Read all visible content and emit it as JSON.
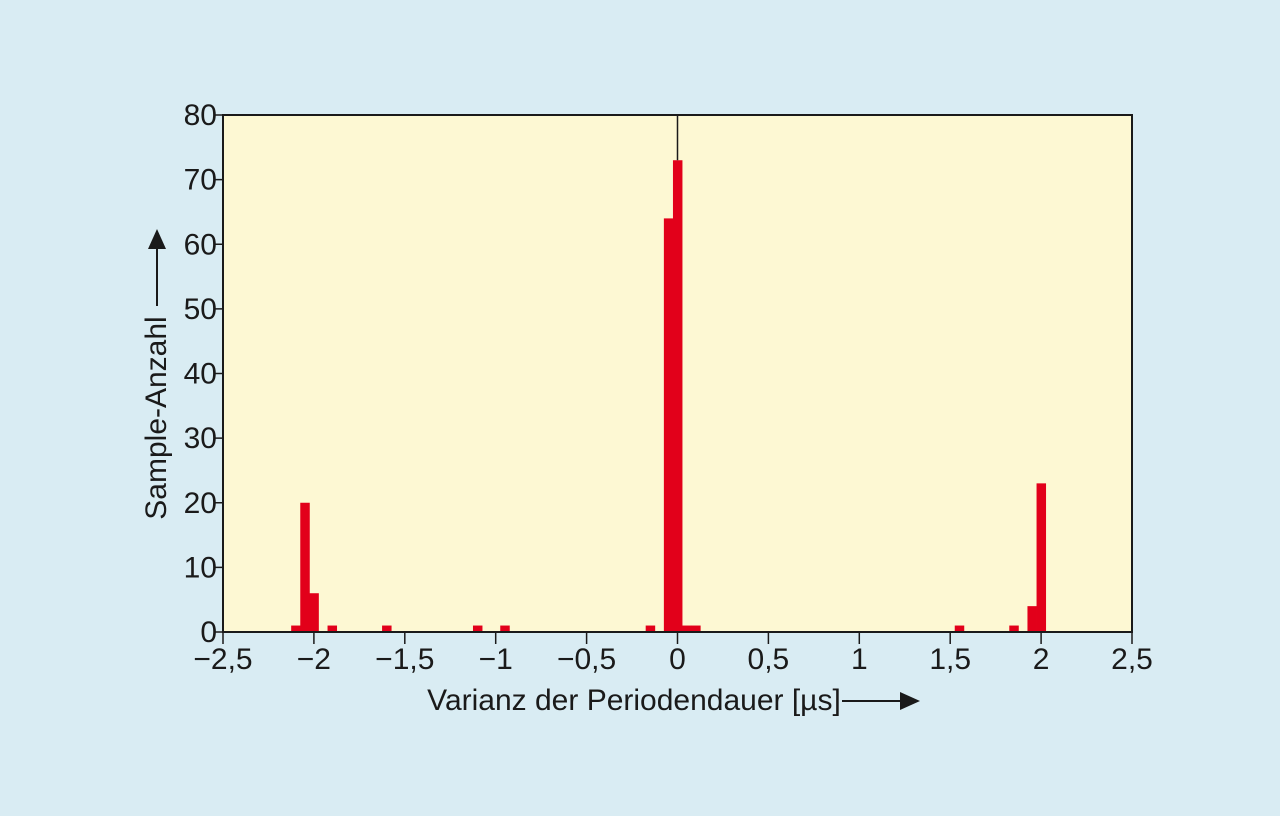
{
  "chart_data": {
    "type": "bar",
    "xlabel": "Varianz der Periodendauer [µs]",
    "ylabel": "Sample-Anzahl",
    "xlim": [
      -2.5,
      2.5
    ],
    "ylim": [
      0,
      80
    ],
    "x_ticks": [
      -2.5,
      -2,
      -1.5,
      -1,
      -0.5,
      0,
      0.5,
      1,
      1.5,
      2,
      2.5
    ],
    "x_tick_labels": [
      "−2,5",
      "−2",
      "−1,5",
      "−1",
      "−0,5",
      "0",
      "0,5",
      "1",
      "1,5",
      "2",
      "2,5"
    ],
    "y_ticks": [
      0,
      10,
      20,
      30,
      40,
      50,
      60,
      70,
      80
    ],
    "y_tick_labels": [
      "0",
      "10",
      "20",
      "30",
      "40",
      "50",
      "60",
      "70",
      "80"
    ],
    "bin_width": 0.05,
    "bars": [
      {
        "x": -2.1,
        "value": 1
      },
      {
        "x": -2.05,
        "value": 20
      },
      {
        "x": -2.0,
        "value": 6
      },
      {
        "x": -1.9,
        "value": 1
      },
      {
        "x": -1.6,
        "value": 1
      },
      {
        "x": -1.1,
        "value": 1
      },
      {
        "x": -0.95,
        "value": 1
      },
      {
        "x": -0.15,
        "value": 1
      },
      {
        "x": -0.05,
        "value": 64
      },
      {
        "x": 0.0,
        "value": 73
      },
      {
        "x": 0.05,
        "value": 1
      },
      {
        "x": 0.1,
        "value": 1
      },
      {
        "x": 1.55,
        "value": 1
      },
      {
        "x": 1.85,
        "value": 1
      },
      {
        "x": 1.95,
        "value": 4
      },
      {
        "x": 2.0,
        "value": 23
      }
    ],
    "reference_line_x": 0,
    "grid": false,
    "colors": {
      "bar": "#e2001a",
      "plot_background": "#fdf8d3",
      "page_background": "#d9ecf3",
      "axis": "#1a1a1a"
    }
  }
}
